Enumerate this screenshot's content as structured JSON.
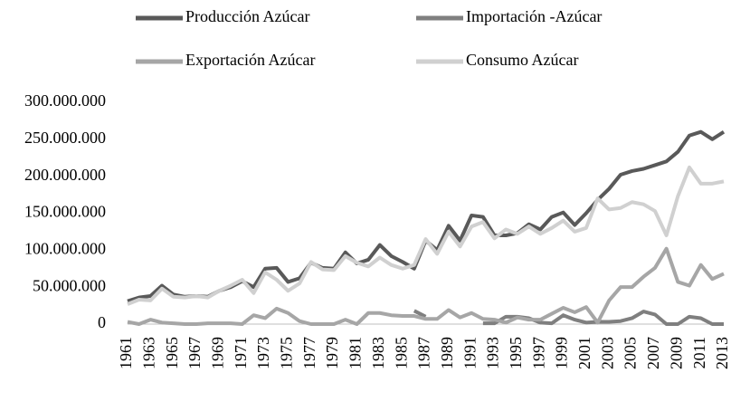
{
  "chart_data": {
    "type": "line",
    "categories": [
      "1961",
      null,
      "1963",
      null,
      "1965",
      null,
      "1967",
      null,
      "1969",
      null,
      "1971",
      null,
      "1973",
      null,
      "1975",
      null,
      "1977",
      null,
      "1979",
      null,
      "1981",
      null,
      "1983",
      null,
      "1985",
      null,
      "1987",
      null,
      "1989",
      null,
      "1991",
      null,
      "1993",
      null,
      "1995",
      null,
      "1997",
      null,
      "1999",
      null,
      "2001",
      null,
      "2003",
      null,
      "2005",
      null,
      "2007",
      null,
      "2009",
      null,
      "2011",
      null,
      "2013"
    ],
    "series": [
      {
        "name": "Producción Azúcar",
        "color": "#595959",
        "values": [
          31000000,
          36000000,
          38000000,
          52000000,
          40000000,
          37000000,
          38000000,
          37000000,
          45000000,
          50000000,
          58000000,
          50000000,
          75000000,
          76000000,
          57000000,
          62000000,
          83000000,
          76000000,
          75000000,
          97000000,
          82000000,
          87000000,
          107000000,
          92000000,
          84000000,
          75000000,
          113000000,
          100000000,
          133000000,
          113000000,
          147000000,
          145000000,
          120000000,
          120000000,
          123000000,
          135000000,
          128000000,
          145000000,
          151000000,
          134000000,
          150000000,
          168000000,
          183000000,
          202000000,
          207000000,
          210000000,
          215000000,
          220000000,
          233000000,
          255000000,
          260000000,
          250000000,
          260000000
        ]
      },
      {
        "name": "Importación -Azúcar",
        "color": "#7f7f7f",
        "values": [
          null,
          null,
          null,
          null,
          null,
          null,
          null,
          null,
          null,
          null,
          null,
          null,
          null,
          null,
          null,
          null,
          null,
          null,
          null,
          null,
          null,
          null,
          null,
          null,
          null,
          18000000,
          10000000,
          null,
          null,
          null,
          null,
          1000000,
          1000000,
          10000000,
          10000000,
          8000000,
          2000000,
          1000000,
          12000000,
          6000000,
          2000000,
          3000000,
          3000000,
          4000000,
          8000000,
          17000000,
          13000000,
          0,
          0,
          10000000,
          8000000,
          0,
          0
        ]
      },
      {
        "name": "Exportación Azúcar",
        "color": "#a6a6a6",
        "values": [
          3000000,
          0,
          6000000,
          2000000,
          1000000,
          0,
          0,
          1000000,
          1000000,
          1000000,
          0,
          12000000,
          8000000,
          21000000,
          15000000,
          4000000,
          0,
          0,
          0,
          6000000,
          0,
          15000000,
          15000000,
          12000000,
          11000000,
          11000000,
          7000000,
          7000000,
          19000000,
          9000000,
          15000000,
          7000000,
          6000000,
          2000000,
          9000000,
          6000000,
          6000000,
          14000000,
          22000000,
          16000000,
          23000000,
          2000000,
          32000000,
          50000000,
          50000000,
          64000000,
          76000000,
          102000000,
          57000000,
          52000000,
          80000000,
          61000000,
          68000000
        ]
      },
      {
        "name": "Consumo Azúcar",
        "color": "#d0d0d0",
        "values": [
          27000000,
          33000000,
          32000000,
          48000000,
          37000000,
          36000000,
          38000000,
          36000000,
          45000000,
          52000000,
          60000000,
          42000000,
          70000000,
          60000000,
          45000000,
          55000000,
          84000000,
          74000000,
          73000000,
          92000000,
          83000000,
          78000000,
          90000000,
          80000000,
          75000000,
          80000000,
          115000000,
          95000000,
          125000000,
          105000000,
          132000000,
          138000000,
          116000000,
          128000000,
          122000000,
          132000000,
          122000000,
          130000000,
          140000000,
          125000000,
          130000000,
          170000000,
          155000000,
          157000000,
          165000000,
          162000000,
          153000000,
          120000000,
          173000000,
          212000000,
          190000000,
          190000000,
          193000000
        ]
      }
    ],
    "ylim": [
      0,
      300000000
    ],
    "yticks": [
      0,
      {
        "value": 50000000,
        "label": "50.000.000"
      },
      {
        "value": 100000000,
        "label": "100.000.000"
      },
      {
        "value": 150000000,
        "label": "150.000.000"
      },
      {
        "value": 200000000,
        "label": "200.000.000"
      },
      {
        "value": 250000000,
        "label": "250.000.000"
      },
      {
        "value": 300000000,
        "label": "300.000.000"
      }
    ],
    "grid": false
  }
}
